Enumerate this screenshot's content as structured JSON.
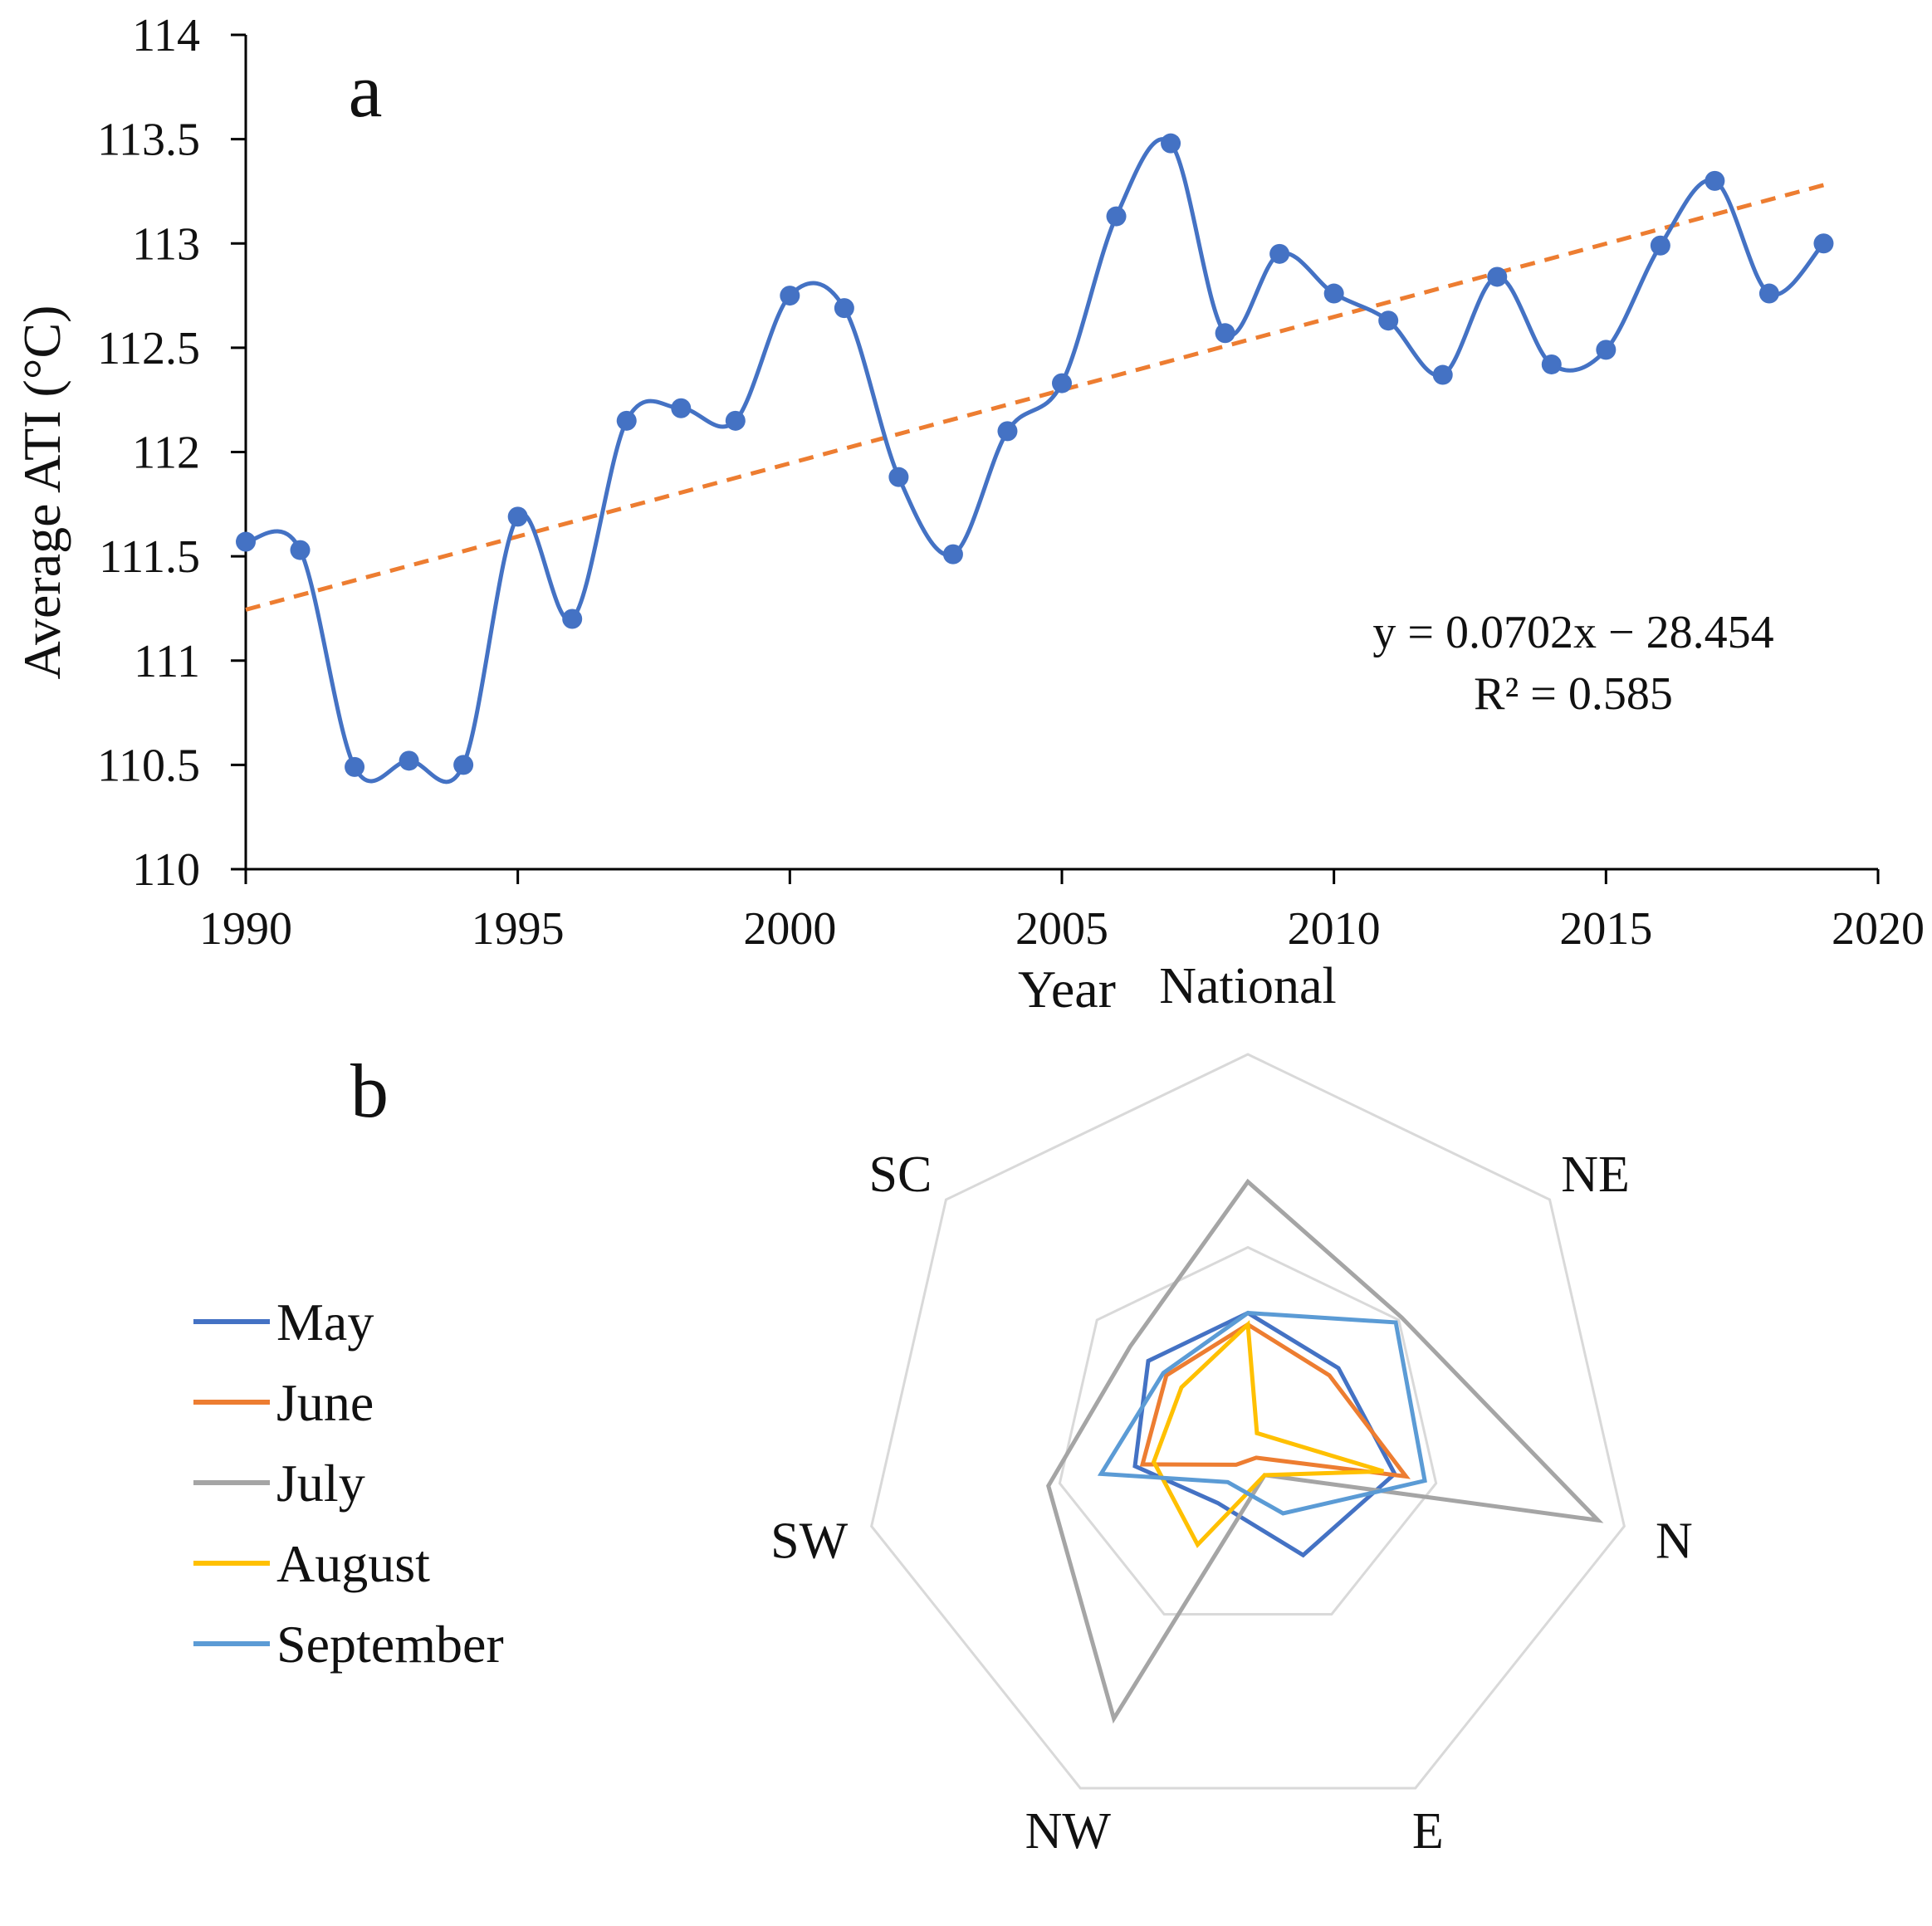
{
  "chart_data": [
    {
      "panel": "a",
      "type": "line",
      "xlabel": "Year",
      "ylabel": "Average ATI (°C)",
      "xlim": [
        1990,
        2020
      ],
      "ylim": [
        110,
        114
      ],
      "xticks": [
        "1990",
        "1995",
        "2000",
        "2005",
        "2010",
        "2015",
        "2020"
      ],
      "yticks": [
        "110",
        "110.5",
        "111",
        "111.5",
        "112",
        "112.5",
        "113",
        "113.5",
        "114"
      ],
      "series": [
        {
          "name": "Average ATI",
          "color": "#4472C4",
          "x": [
            1990,
            1991,
            1992,
            1993,
            1994,
            1995,
            1996,
            1997,
            1998,
            1999,
            2000,
            2001,
            2002,
            2003,
            2004,
            2005,
            2006,
            2007,
            2008,
            2009,
            2010,
            2011,
            2012,
            2013,
            2014,
            2015,
            2016,
            2017,
            2018,
            2019
          ],
          "values": [
            111.57,
            111.53,
            110.49,
            110.52,
            110.5,
            111.69,
            111.2,
            112.15,
            112.21,
            112.15,
            112.75,
            112.69,
            111.88,
            111.51,
            112.1,
            112.33,
            113.13,
            113.48,
            112.57,
            112.95,
            112.76,
            112.63,
            112.37,
            112.84,
            112.42,
            112.49,
            112.99,
            113.3,
            112.76,
            113.0
          ]
        }
      ],
      "trendline": {
        "color": "#ED7D31",
        "slope": 0.0702,
        "intercept": -28.454,
        "x_range": [
          1990,
          2019
        ],
        "equation": "y = 0.0702x − 28.454",
        "r2": "R² = 0.585"
      }
    },
    {
      "panel": "b",
      "type": "radar",
      "categories": [
        "National",
        "NE",
        "N",
        "E",
        "NW",
        "SW",
        "SC"
      ],
      "range": [
        0,
        1
      ],
      "rings": [
        0.5,
        1.0
      ],
      "series": [
        {
          "name": "May",
          "color": "#4472C4",
          "values": [
            0.33,
            0.3,
            0.39,
            0.33,
            0.18,
            0.3,
            0.33
          ]
        },
        {
          "name": "June",
          "color": "#ED7D31",
          "values": [
            0.3,
            0.27,
            0.42,
            0.05,
            0.07,
            0.28,
            0.27
          ]
        },
        {
          "name": "July",
          "color": "#A5A5A5",
          "values": [
            0.67,
            0.51,
            0.93,
            0.1,
            0.8,
            0.53,
            0.39
          ]
        },
        {
          "name": "August",
          "color": "#FFC000",
          "values": [
            0.3,
            0.03,
            0.36,
            0.1,
            0.3,
            0.25,
            0.22
          ]
        },
        {
          "name": "September",
          "color": "#5B9BD5",
          "values": [
            0.33,
            0.49,
            0.47,
            0.21,
            0.12,
            0.39,
            0.28
          ]
        }
      ]
    }
  ],
  "labels": {
    "panel_a": "a",
    "panel_b": "b"
  }
}
